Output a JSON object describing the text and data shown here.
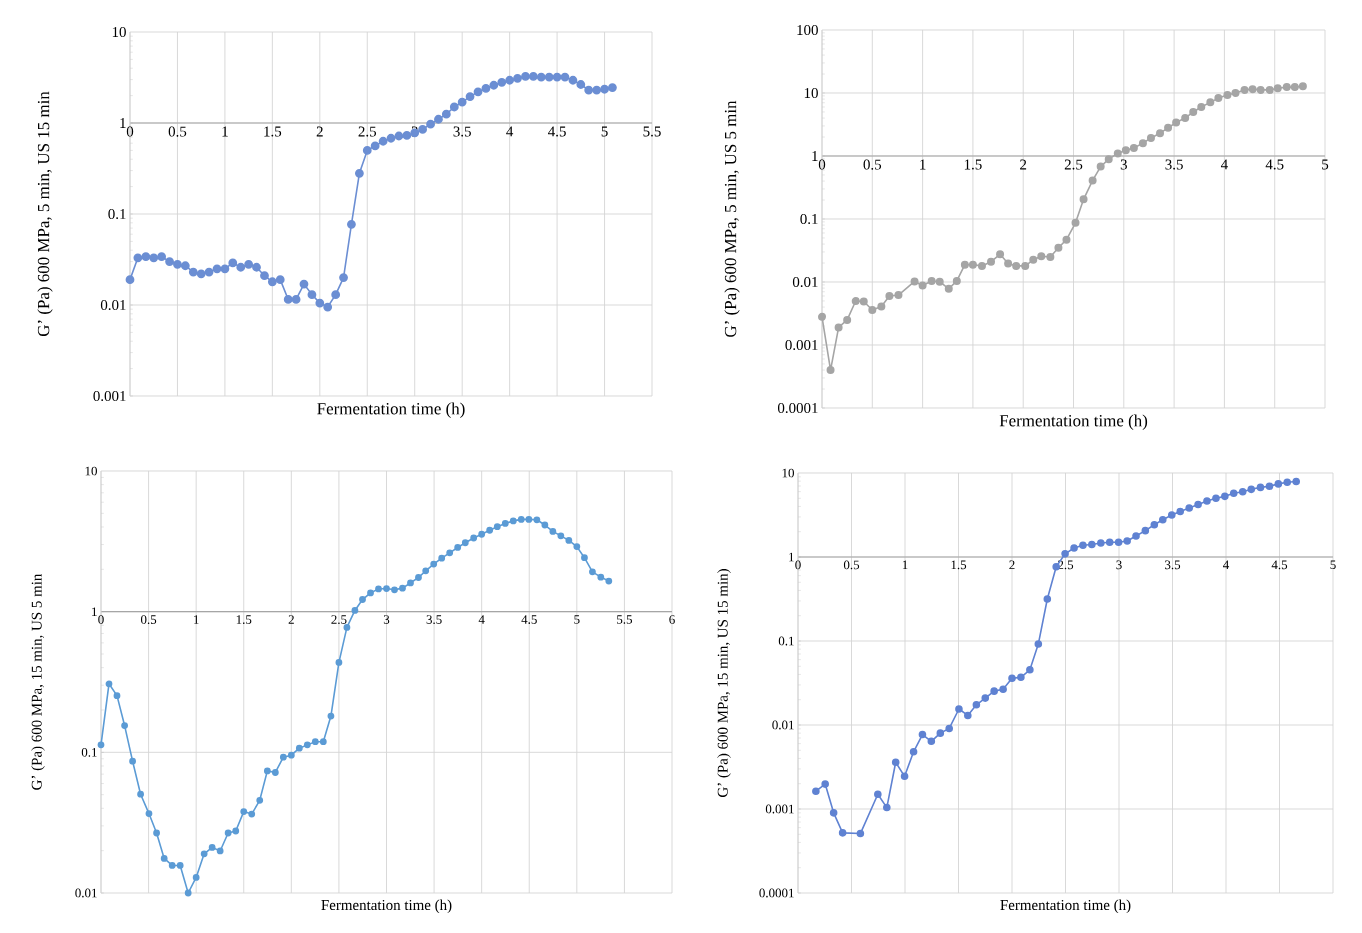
{
  "chart_data": [
    {
      "type": "line",
      "xlabel": "Fermentation time (h)",
      "ylabel": "G’ (Pa) 600 MPa, 5 min, US 15 min",
      "color": "#6b8ed3",
      "marker": "circle",
      "log": "y",
      "grid": true,
      "xlim": [
        0,
        5.5
      ],
      "ylim": [
        0.001,
        10
      ],
      "xticks": [
        0,
        0.5,
        1,
        1.5,
        2,
        2.5,
        3,
        3.5,
        4,
        4.5,
        5,
        5.5
      ],
      "yticks": [
        0.001,
        0.01,
        0.1,
        1,
        10
      ],
      "x": [
        0,
        0.083,
        0.167,
        0.25,
        0.333,
        0.417,
        0.5,
        0.583,
        0.667,
        0.75,
        0.833,
        0.917,
        1.0,
        1.083,
        1.167,
        1.25,
        1.333,
        1.417,
        1.5,
        1.583,
        1.667,
        1.75,
        1.833,
        1.917,
        2.0,
        2.083,
        2.167,
        2.25,
        2.333,
        2.417,
        2.5,
        2.583,
        2.667,
        2.75,
        2.833,
        2.917,
        3.0,
        3.083,
        3.167,
        3.25,
        3.333,
        3.417,
        3.5,
        3.583,
        3.667,
        3.75,
        3.833,
        3.917,
        4.0,
        4.083,
        4.167,
        4.25,
        4.333,
        4.417,
        4.5,
        4.583,
        4.667,
        4.75,
        4.833,
        4.917,
        5.0,
        5.083
      ],
      "values": [
        0.019,
        0.033,
        0.034,
        0.033,
        0.034,
        0.03,
        0.028,
        0.027,
        0.023,
        0.022,
        0.023,
        0.025,
        0.025,
        0.029,
        0.026,
        0.028,
        0.026,
        0.021,
        0.018,
        0.019,
        0.0115,
        0.0115,
        0.017,
        0.013,
        0.0105,
        0.0095,
        0.013,
        0.02,
        0.077,
        0.28,
        0.5,
        0.56,
        0.63,
        0.68,
        0.72,
        0.73,
        0.78,
        0.85,
        0.97,
        1.1,
        1.25,
        1.5,
        1.7,
        1.95,
        2.2,
        2.4,
        2.6,
        2.8,
        2.95,
        3.1,
        3.25,
        3.25,
        3.2,
        3.2,
        3.2,
        3.2,
        2.95,
        2.65,
        2.3,
        2.3,
        2.35,
        2.45
      ]
    },
    {
      "type": "line",
      "xlabel": "Fermentation time (h)",
      "ylabel": "G’ (Pa) 600 MPa, 5 min, US 5 min",
      "color": "#a5a5a5",
      "marker": "circle",
      "log": "y",
      "grid": true,
      "xlim": [
        0,
        5
      ],
      "ylim": [
        0.0001,
        100
      ],
      "xticks": [
        0,
        0.5,
        1,
        1.5,
        2,
        2.5,
        3,
        3.5,
        4,
        4.5,
        5
      ],
      "yticks": [
        0.0001,
        0.001,
        0.01,
        0.1,
        1,
        10,
        100
      ],
      "x": [
        0,
        0.085,
        0.165,
        0.25,
        0.335,
        0.415,
        0.5,
        0.59,
        0.67,
        0.76,
        0.92,
        1.0,
        1.09,
        1.17,
        1.26,
        1.34,
        1.42,
        1.5,
        1.59,
        1.68,
        1.77,
        1.85,
        1.93,
        2.02,
        2.1,
        2.18,
        2.27,
        2.35,
        2.43,
        2.52,
        2.6,
        2.69,
        2.77,
        2.85,
        2.94,
        3.02,
        3.1,
        3.19,
        3.27,
        3.36,
        3.44,
        3.52,
        3.61,
        3.69,
        3.77,
        3.86,
        3.94,
        4.03,
        4.11,
        4.2,
        4.28,
        4.36,
        4.45,
        4.53,
        4.62,
        4.7,
        4.78
      ],
      "values": [
        0.0028,
        0.0004,
        0.0019,
        0.0025,
        0.005,
        0.0049,
        0.0036,
        0.0041,
        0.006,
        0.0062,
        0.0102,
        0.0088,
        0.0104,
        0.0101,
        0.0078,
        0.0104,
        0.0188,
        0.0188,
        0.018,
        0.021,
        0.0275,
        0.0197,
        0.018,
        0.018,
        0.0225,
        0.0256,
        0.025,
        0.035,
        0.047,
        0.087,
        0.205,
        0.41,
        0.68,
        0.89,
        1.1,
        1.23,
        1.34,
        1.6,
        1.93,
        2.3,
        2.8,
        3.4,
        4.0,
        5.0,
        6.0,
        7.1,
        8.3,
        9.3,
        10,
        11.2,
        11.5,
        11.2,
        11.2,
        11.9,
        12.4,
        12.4,
        12.8
      ]
    },
    {
      "type": "line",
      "xlabel": "Fermentation time (h)",
      "ylabel": "G’ (Pa) 600 MPa, 15 min, US 5 min",
      "color": "#5b9bd5",
      "marker": "circle",
      "log": "y",
      "grid": true,
      "xlim": [
        0,
        6
      ],
      "ylim": [
        0.01,
        10
      ],
      "xticks": [
        0,
        0.5,
        1,
        1.5,
        2,
        2.5,
        3,
        3.5,
        4,
        4.5,
        5,
        5.5,
        6
      ],
      "yticks": [
        0.01,
        0.1,
        1,
        10
      ],
      "x": [
        0,
        0.084,
        0.168,
        0.248,
        0.332,
        0.416,
        0.504,
        0.584,
        0.664,
        0.748,
        0.832,
        0.916,
        1.0,
        1.084,
        1.168,
        1.252,
        1.336,
        1.416,
        1.5,
        1.584,
        1.668,
        1.748,
        1.832,
        1.916,
        2.0,
        2.084,
        2.168,
        2.252,
        2.336,
        2.416,
        2.5,
        2.584,
        2.668,
        2.748,
        2.832,
        2.916,
        3.0,
        3.084,
        3.168,
        3.252,
        3.336,
        3.412,
        3.496,
        3.58,
        3.664,
        3.748,
        3.828,
        3.916,
        4.0,
        4.084,
        4.164,
        4.248,
        4.332,
        4.416,
        4.496,
        4.58,
        4.664,
        4.748,
        4.832,
        4.916,
        5.0,
        5.08,
        5.164,
        5.252,
        5.336
      ],
      "values": [
        0.113,
        0.307,
        0.253,
        0.155,
        0.0865,
        0.0504,
        0.0367,
        0.0267,
        0.0176,
        0.0157,
        0.0157,
        0.01,
        0.0129,
        0.019,
        0.0211,
        0.0199,
        0.0267,
        0.0276,
        0.0379,
        0.0364,
        0.0456,
        0.0738,
        0.0719,
        0.0924,
        0.0955,
        0.107,
        0.113,
        0.119,
        0.119,
        0.181,
        0.436,
        0.773,
        1.02,
        1.22,
        1.36,
        1.45,
        1.46,
        1.43,
        1.47,
        1.6,
        1.75,
        1.95,
        2.18,
        2.4,
        2.62,
        2.86,
        3.09,
        3.34,
        3.55,
        3.79,
        4.02,
        4.24,
        4.42,
        4.53,
        4.53,
        4.5,
        4.13,
        3.72,
        3.46,
        3.21,
        2.9,
        2.42,
        1.92,
        1.76,
        1.65
      ]
    },
    {
      "type": "line",
      "xlabel": "Fermentation time (h)",
      "ylabel": "G’ (Pa) 600 MPa, 15 min, US 15 min)",
      "color": "#5f82d2",
      "marker": "circle",
      "log": "y",
      "grid": true,
      "xlim": [
        0,
        5
      ],
      "ylim": [
        0.0001,
        10
      ],
      "xticks": [
        0,
        0.5,
        1,
        1.5,
        2,
        2.5,
        3,
        3.5,
        4,
        4.5,
        5
      ],
      "yticks": [
        0.0001,
        0.001,
        0.01,
        0.1,
        1,
        10
      ],
      "x": [
        0.167,
        0.254,
        0.333,
        0.417,
        0.583,
        0.746,
        0.83,
        0.913,
        0.996,
        1.08,
        1.163,
        1.246,
        1.33,
        1.413,
        1.504,
        1.587,
        1.667,
        1.75,
        1.833,
        1.917,
        2.0,
        2.083,
        2.167,
        2.246,
        2.33,
        2.413,
        2.496,
        2.58,
        2.663,
        2.746,
        2.83,
        2.913,
        2.996,
        3.076,
        3.159,
        3.246,
        3.33,
        3.409,
        3.493,
        3.572,
        3.656,
        3.739,
        3.822,
        3.906,
        3.989,
        4.072,
        4.156,
        4.236,
        4.322,
        4.406,
        4.489,
        4.572,
        4.656
      ],
      "values": [
        0.00163,
        0.00198,
        0.0009,
        0.00052,
        0.00051,
        0.0015,
        0.00104,
        0.0036,
        0.00245,
        0.0048,
        0.0077,
        0.0064,
        0.008,
        0.0091,
        0.0155,
        0.013,
        0.0174,
        0.0209,
        0.0253,
        0.0267,
        0.036,
        0.037,
        0.0454,
        0.092,
        0.316,
        0.766,
        1.09,
        1.28,
        1.38,
        1.41,
        1.47,
        1.5,
        1.5,
        1.55,
        1.78,
        2.06,
        2.42,
        2.78,
        3.16,
        3.48,
        3.83,
        4.21,
        4.64,
        5.0,
        5.27,
        5.74,
        5.99,
        6.39,
        6.74,
        6.96,
        7.42,
        7.75,
        7.92
      ]
    }
  ]
}
